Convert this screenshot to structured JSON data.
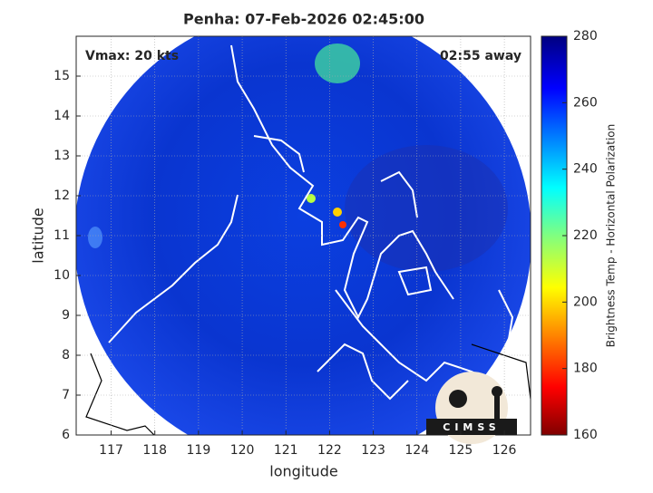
{
  "chart_data": {
    "type": "map",
    "title": "Penha: 07-Feb-2026 02:45:00",
    "annotations": [
      "Vmax: 20 kts",
      "02:55 away"
    ],
    "x_label": "longitude",
    "y_label": "latitude",
    "xlim": [
      116.2,
      126.6
    ],
    "xticks": [
      117,
      118,
      119,
      120,
      121,
      122,
      123,
      124,
      125,
      126
    ],
    "ylim": [
      6,
      16
    ],
    "yticks": [
      6,
      7,
      8,
      9,
      10,
      11,
      12,
      13,
      14,
      15
    ],
    "grid": true,
    "colorbar": {
      "label": "Brightness Temp - Horizontal Polarization",
      "lim": [
        160,
        280
      ],
      "ticks": [
        160,
        180,
        200,
        220,
        240,
        260,
        280
      ]
    },
    "logo": "CIMSS"
  }
}
